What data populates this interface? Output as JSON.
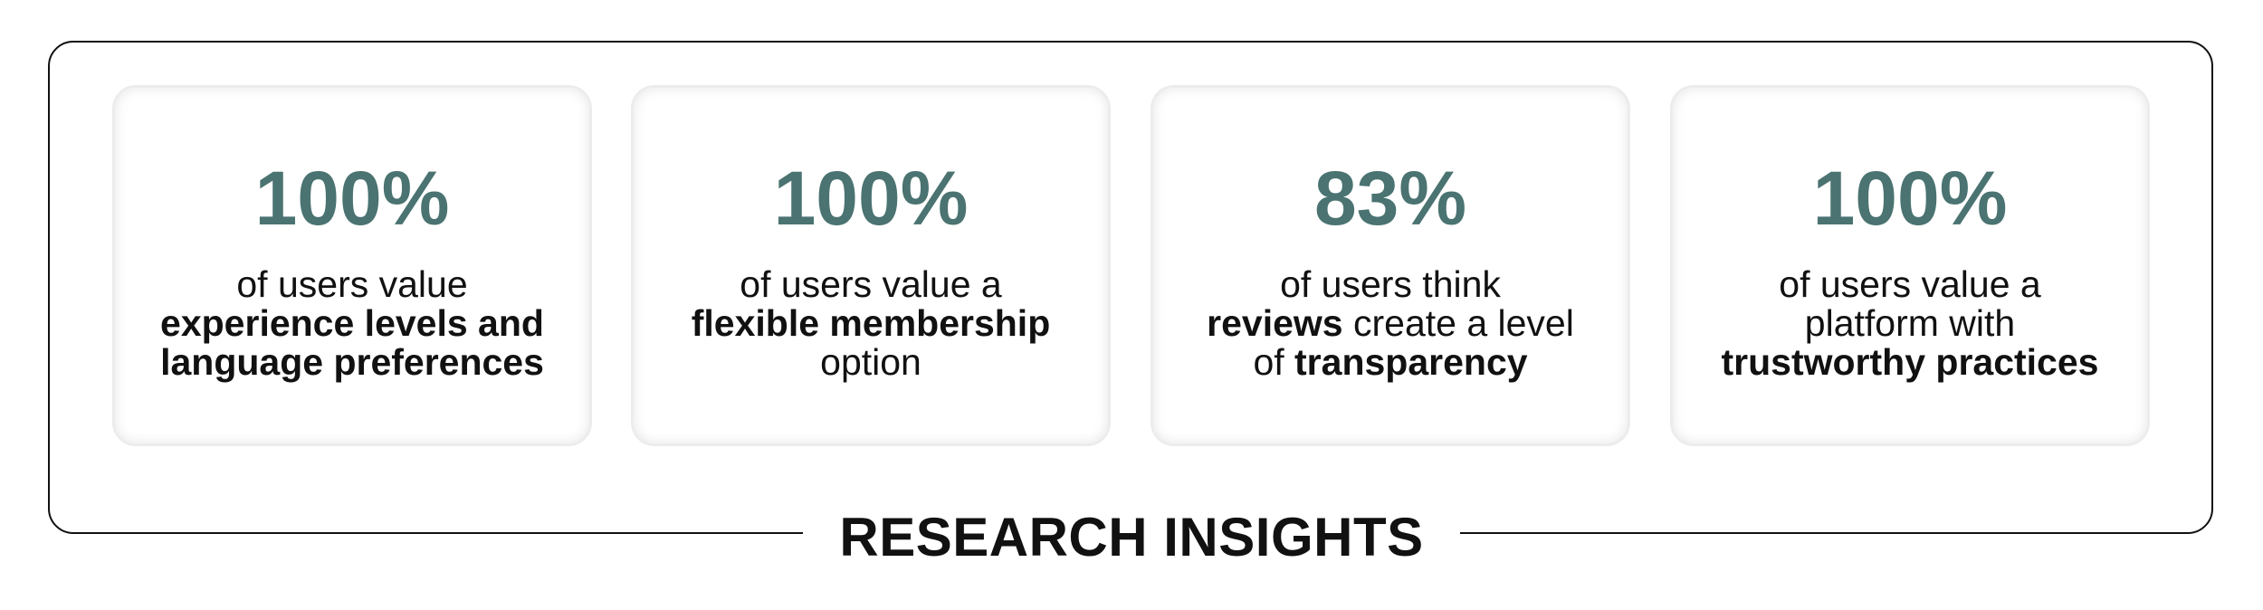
{
  "title": "RESEARCH INSIGHTS",
  "cards": [
    {
      "stat": "100%",
      "lines": [
        [
          {
            "text": "of users value",
            "bold": false
          }
        ],
        [
          {
            "text": "experience levels and",
            "bold": true
          }
        ],
        [
          {
            "text": "language preferences",
            "bold": true
          }
        ]
      ]
    },
    {
      "stat": "100%",
      "lines": [
        [
          {
            "text": "of users value a",
            "bold": false
          }
        ],
        [
          {
            "text": "flexible membership",
            "bold": true
          }
        ],
        [
          {
            "text": "option",
            "bold": false
          }
        ]
      ]
    },
    {
      "stat": "83%",
      "lines": [
        [
          {
            "text": "of users think",
            "bold": false
          }
        ],
        [
          {
            "text": "reviews",
            "bold": true
          },
          {
            "text": " create a level",
            "bold": false
          }
        ],
        [
          {
            "text": "of ",
            "bold": false
          },
          {
            "text": "transparency",
            "bold": true
          }
        ]
      ]
    },
    {
      "stat": "100%",
      "lines": [
        [
          {
            "text": "of users value a",
            "bold": false
          }
        ],
        [
          {
            "text": "platform with",
            "bold": false
          }
        ],
        [
          {
            "text": "trustworthy practices",
            "bold": true
          }
        ]
      ]
    }
  ]
}
